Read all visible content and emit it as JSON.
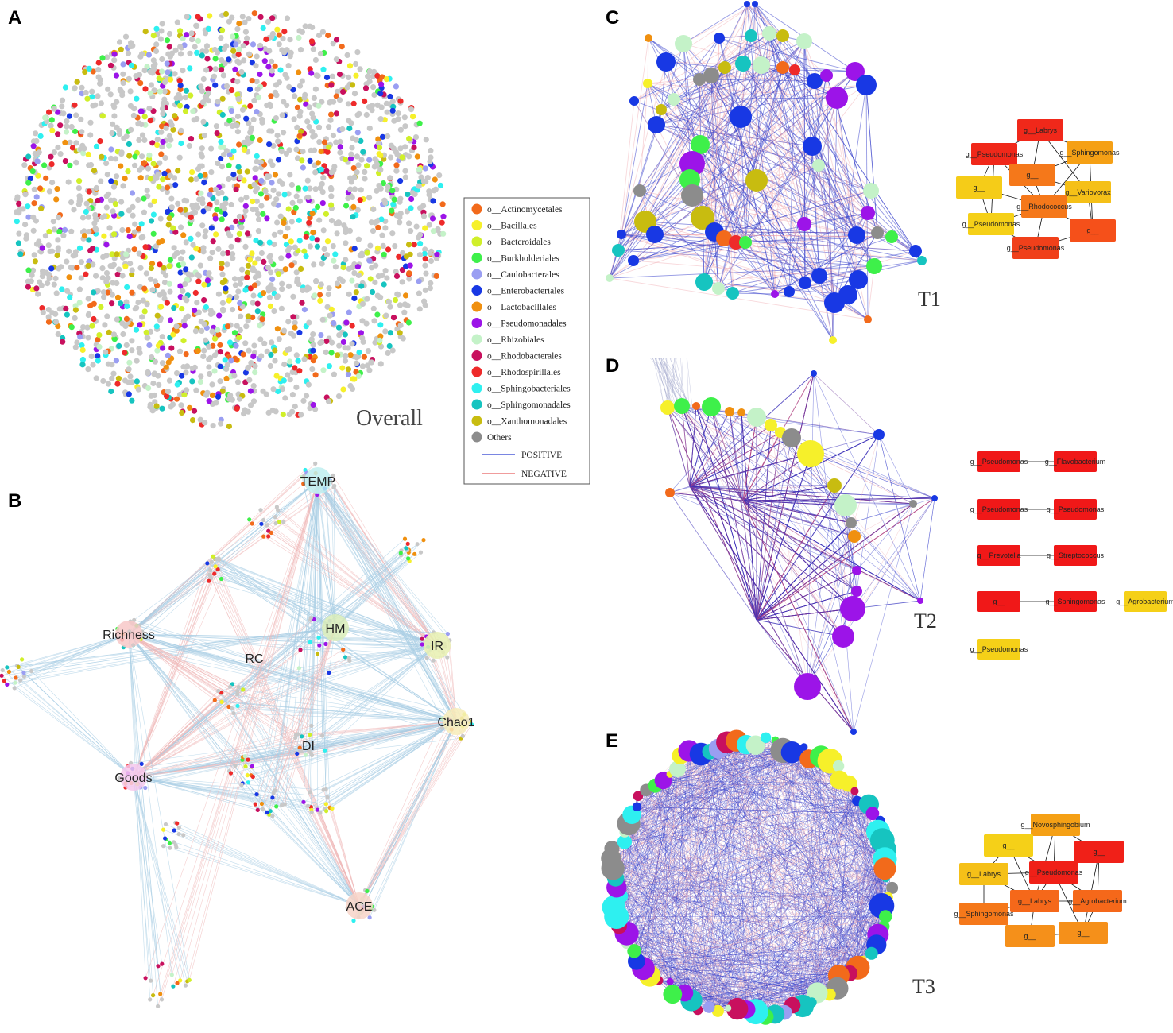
{
  "colors": {
    "Actinomycetales": "#f26a1b",
    "Bacillales": "#f6f02a",
    "Bacteroidales": "#d0ef2a",
    "Burkholderiales": "#3ef04a",
    "Caulobacterales": "#9a9ef2",
    "Enterobacteriales": "#1838e4",
    "Lactobacillales": "#f0900f",
    "Pseudomonadales": "#9c14e8",
    "Rhizobiales": "#c4f2c8",
    "Rhodobacterales": "#c8105e",
    "Rhodospirillales": "#ee2a2a",
    "Sphingobacteriales": "#2ef0f0",
    "Sphingomonadales": "#16c4c0",
    "Xanthomonadales": "#c8bc10",
    "Others": "#8c8c8c",
    "positive": "#2b3fd0",
    "negative": "#e86060"
  },
  "panels": {
    "A": {
      "letter": "A",
      "caption": "Overall"
    },
    "B": {
      "letter": "B",
      "hubs": [
        "TEMP",
        "Richness",
        "HM",
        "RC",
        "IR",
        "Chao1",
        "DI",
        "Goods",
        "ACE"
      ]
    },
    "C": {
      "letter": "C",
      "caption": "T1"
    },
    "D": {
      "letter": "D",
      "caption": "T2"
    },
    "E": {
      "letter": "E",
      "caption": "T3"
    }
  },
  "legend": {
    "items": [
      {
        "label": "o__Actinomycetales",
        "color": "#f26a1b"
      },
      {
        "label": "o__Bacillales",
        "color": "#f6f02a"
      },
      {
        "label": "o__Bacteroidales",
        "color": "#d0ef2a"
      },
      {
        "label": "o__Burkholderiales",
        "color": "#3ef04a"
      },
      {
        "label": "o__Caulobacterales",
        "color": "#9a9ef2"
      },
      {
        "label": "o__Enterobacteriales",
        "color": "#1838e4"
      },
      {
        "label": "o__Lactobacillales",
        "color": "#f0900f"
      },
      {
        "label": "o__Pseudomonadales",
        "color": "#9c14e8"
      },
      {
        "label": "o__Rhizobiales",
        "color": "#c4f2c8"
      },
      {
        "label": "o__Rhodobacterales",
        "color": "#c8105e"
      },
      {
        "label": "o__Rhodospirillales",
        "color": "#ee2a2a"
      },
      {
        "label": "o__Sphingobacteriales",
        "color": "#2ef0f0"
      },
      {
        "label": "o__Sphingomonadales",
        "color": "#16c4c0"
      },
      {
        "label": "o__Xanthomonadales",
        "color": "#c8bc10"
      },
      {
        "label": "Others",
        "color": "#8c8c8c"
      }
    ],
    "lines": [
      {
        "label": "POSITIVE",
        "color": "#2b3fd0"
      },
      {
        "label": "NEGATIVE",
        "color": "#e86060"
      }
    ]
  },
  "genus_nets": {
    "T1": [
      "g__Labrys",
      "g__Sphingomonas",
      "g__Pseudomonas",
      "g__",
      "g__",
      "g__Variovorax",
      "g__Rhodococcus",
      "g__Pseudomonas",
      "g__",
      "g__Pseudomonas"
    ],
    "T2": [
      "g__Pseudomonas",
      "g__Flavobacterium",
      "g__Pseudomonas",
      "g__Pseudomonas",
      "g__Prevotella",
      "g__Streptococcus",
      "g__",
      "g__Sphingomonas",
      "g__Agrobacterium",
      "g__Pseudomonas"
    ],
    "T3": [
      "g__Novosphingobium",
      "g__",
      "g__",
      "g__Labrys",
      "g__Pseudomonas",
      "g__Labrys",
      "g__Agrobacterium",
      "g__Sphingomonas",
      "g__",
      "g__"
    ]
  }
}
